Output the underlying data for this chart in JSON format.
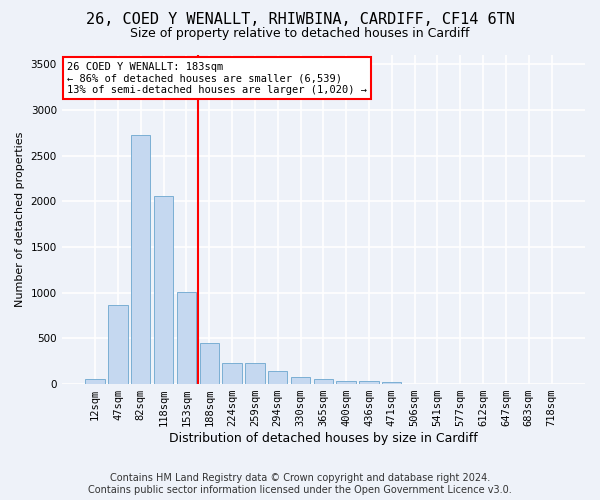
{
  "title_line1": "26, COED Y WENALLT, RHIWBINA, CARDIFF, CF14 6TN",
  "title_line2": "Size of property relative to detached houses in Cardiff",
  "xlabel": "Distribution of detached houses by size in Cardiff",
  "ylabel": "Number of detached properties",
  "footnote1": "Contains HM Land Registry data © Crown copyright and database right 2024.",
  "footnote2": "Contains public sector information licensed under the Open Government Licence v3.0.",
  "bar_labels": [
    "12sqm",
    "47sqm",
    "82sqm",
    "118sqm",
    "153sqm",
    "188sqm",
    "224sqm",
    "259sqm",
    "294sqm",
    "330sqm",
    "365sqm",
    "400sqm",
    "436sqm",
    "471sqm",
    "506sqm",
    "541sqm",
    "577sqm",
    "612sqm",
    "647sqm",
    "683sqm",
    "718sqm"
  ],
  "bar_values": [
    60,
    860,
    2730,
    2060,
    1010,
    450,
    230,
    230,
    140,
    75,
    55,
    30,
    30,
    20,
    0,
    0,
    0,
    0,
    0,
    0,
    0
  ],
  "bar_color": "#c5d8f0",
  "bar_edge_color": "#7bafd4",
  "vline_color": "red",
  "vline_xindex": 4.5,
  "ylim": [
    0,
    3600
  ],
  "yticks": [
    0,
    500,
    1000,
    1500,
    2000,
    2500,
    3000,
    3500
  ],
  "annotation_title": "26 COED Y WENALLT: 183sqm",
  "annotation_line2": "← 86% of detached houses are smaller (6,539)",
  "annotation_line3": "13% of semi-detached houses are larger (1,020) →",
  "annotation_box_edgecolor": "red",
  "bg_color": "#eef2f9",
  "grid_color": "#ffffff",
  "title_fontsize": 11,
  "subtitle_fontsize": 9,
  "ylabel_fontsize": 8,
  "xlabel_fontsize": 9,
  "tick_fontsize": 7.5,
  "annot_fontsize": 7.5,
  "footnote_fontsize": 7
}
